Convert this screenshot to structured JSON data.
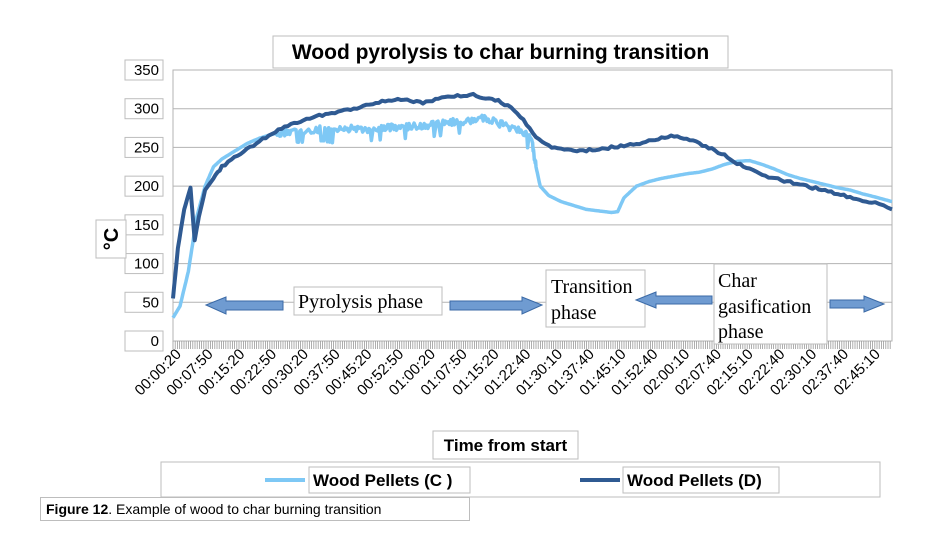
{
  "chart_data": {
    "type": "line",
    "title": "Wood pyrolysis to char burning transition",
    "xlabel": "Time from start",
    "ylabel": "°C",
    "ylim": [
      0,
      350
    ],
    "yticks": [
      "0",
      "50",
      "100",
      "150",
      "200",
      "250",
      "300",
      "350"
    ],
    "x_unit": "minutes",
    "x_range": [
      0.33,
      172
    ],
    "xtick_labels": [
      "00:00:20",
      "00:07:50",
      "00:15:20",
      "00:22:50",
      "00:30:20",
      "00:37:50",
      "00:45:20",
      "00:52:50",
      "01:00:20",
      "01:07:50",
      "01:15:20",
      "01:22:40",
      "01:30:10",
      "01:37:40",
      "01:45:10",
      "01:52:40",
      "02:00:10",
      "02:07:40",
      "02:15:10",
      "02:22:40",
      "02:30:10",
      "02:37:40",
      "02:45:10"
    ],
    "legend_position": "bottom",
    "grid": true,
    "series": [
      {
        "name": "Wood Pellets (C )",
        "color": "#7ec8f5",
        "x": [
          0.33,
          2,
          4,
          6,
          8,
          10,
          12,
          15,
          18,
          21,
          24,
          27,
          30,
          33,
          36,
          39,
          42,
          45,
          48,
          51,
          54,
          57,
          60,
          63,
          66,
          69,
          72,
          75,
          78,
          81,
          84,
          86,
          87,
          88,
          90,
          93,
          96,
          99,
          102,
          105,
          106.5,
          108,
          111,
          114,
          117,
          120,
          123,
          126,
          129,
          132,
          135,
          138,
          141,
          144,
          147,
          150,
          153,
          156,
          159,
          162,
          165,
          168,
          172
        ],
        "y": [
          30,
          45,
          90,
          160,
          200,
          225,
          235,
          245,
          255,
          262,
          267,
          270,
          272,
          272,
          274,
          271,
          275,
          273,
          274,
          276,
          276,
          277,
          278,
          280,
          282,
          284,
          286,
          288,
          282,
          276,
          270,
          260,
          225,
          200,
          188,
          180,
          175,
          170,
          168,
          166,
          167,
          185,
          200,
          206,
          210,
          213,
          216,
          218,
          222,
          228,
          232,
          233,
          228,
          222,
          215,
          210,
          206,
          202,
          198,
          195,
          190,
          186,
          180
        ]
      },
      {
        "name": "Wood Pellets (D)",
        "color": "#2f5a92",
        "x": [
          0.33,
          1.5,
          3,
          4.5,
          5.5,
          6.5,
          8,
          10,
          12,
          15,
          18,
          21,
          24,
          27,
          30,
          33,
          36,
          39,
          42,
          45,
          48,
          51,
          54,
          57,
          60,
          63,
          66,
          69,
          72,
          75,
          78,
          81,
          84,
          87,
          90,
          93,
          96,
          99,
          102,
          105,
          108,
          111,
          114,
          117,
          120,
          123,
          126,
          129,
          132,
          135,
          138,
          141,
          144,
          147,
          150,
          153,
          156,
          159,
          162,
          165,
          168,
          172
        ],
        "y": [
          55,
          120,
          170,
          198,
          130,
          160,
          195,
          210,
          225,
          238,
          248,
          258,
          268,
          276,
          282,
          287,
          292,
          295,
          298,
          302,
          306,
          310,
          312,
          310,
          308,
          312,
          315,
          317,
          318,
          314,
          310,
          302,
          285,
          262,
          252,
          248,
          246,
          246,
          248,
          250,
          252,
          255,
          258,
          262,
          265,
          262,
          255,
          248,
          240,
          230,
          222,
          215,
          210,
          206,
          202,
          198,
          195,
          190,
          186,
          182,
          178,
          170
        ]
      }
    ],
    "annotations": {
      "pyrolysis": "Pyrolysis phase",
      "transition_1": "Transition",
      "transition_2": "phase",
      "char_1": "Char",
      "char_2": "gasification",
      "char_3": "phase"
    }
  },
  "caption": {
    "figure_label": "Figure 12",
    "text": ". Example of wood to char burning transition"
  }
}
